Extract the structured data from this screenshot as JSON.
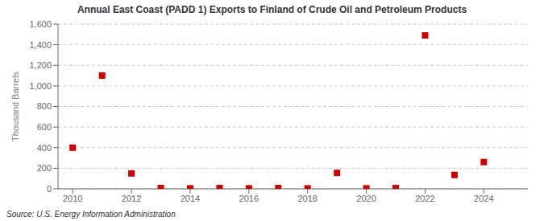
{
  "chart_data": {
    "type": "scatter",
    "title": "Annual East Coast (PADD 1) Exports to Finland of Crude Oil and Petroleum Products",
    "ylabel": "Thousand Barrels",
    "annotations": [
      "Source: U.S. Energy Information Administration"
    ],
    "color": "#cc0000",
    "marker": "square",
    "grid": "y",
    "xlim": [
      2009.5,
      2025.5
    ],
    "ylim": [
      0,
      1600
    ],
    "xticks": [
      2010,
      2012,
      2014,
      2016,
      2018,
      2020,
      2022,
      2024
    ],
    "yticks": [
      0,
      200,
      400,
      600,
      800,
      {
        "value": 1000,
        "label": "1,000"
      },
      {
        "value": 1200,
        "label": "1,200"
      },
      {
        "value": 1400,
        "label": "1,400"
      },
      {
        "value": 1600,
        "label": "1,600"
      }
    ],
    "x": [
      2010,
      2011,
      2012,
      2013,
      2014,
      2015,
      2016,
      2017,
      2018,
      2019,
      2020,
      2021,
      2022,
      2023,
      2024
    ],
    "values": [
      400,
      1100,
      150,
      8,
      5,
      8,
      5,
      8,
      5,
      155,
      5,
      8,
      1490,
      135,
      260
    ]
  }
}
